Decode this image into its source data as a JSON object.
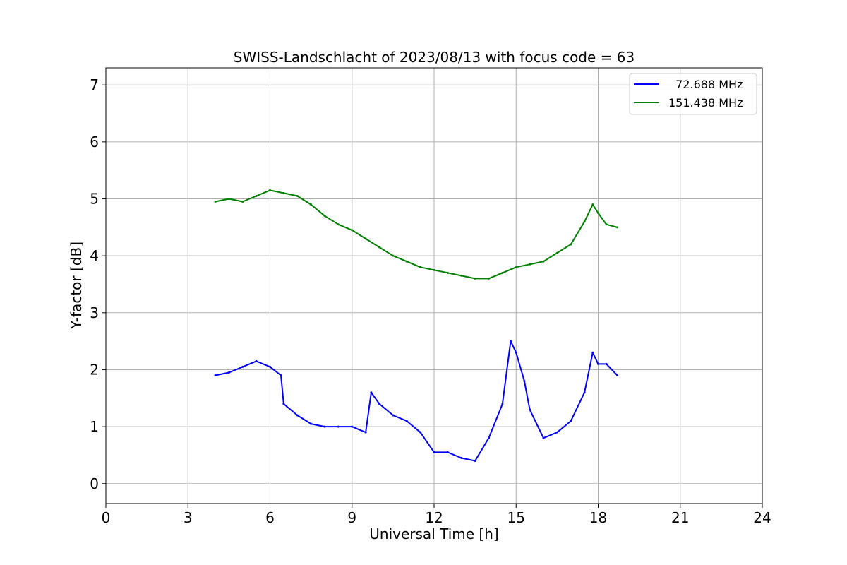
{
  "chart_data": {
    "type": "line",
    "title": "SWISS-Landschlacht of 2023/08/13 with focus code = 63",
    "xlabel": "Universal Time [h]",
    "ylabel": "Y-factor [dB]",
    "xlim": [
      0,
      24
    ],
    "ylim": [
      -0.35,
      7.3
    ],
    "xticks": [
      0,
      3,
      6,
      9,
      12,
      15,
      18,
      21,
      24
    ],
    "yticks": [
      0,
      1,
      2,
      3,
      4,
      5,
      6,
      7
    ],
    "grid": true,
    "legend_position": "top-right",
    "series": [
      {
        "name": "  72.688 MHz",
        "color": "#0000ff",
        "x": [
          4.0,
          4.5,
          5.0,
          5.5,
          6.0,
          6.4,
          6.5,
          7.0,
          7.5,
          8.0,
          8.5,
          9.0,
          9.5,
          9.7,
          10.0,
          10.5,
          11.0,
          11.5,
          12.0,
          12.5,
          13.0,
          13.5,
          14.0,
          14.5,
          14.8,
          15.0,
          15.3,
          15.5,
          16.0,
          16.5,
          17.0,
          17.5,
          17.8,
          18.0,
          18.3,
          18.7
        ],
        "y": [
          1.9,
          1.95,
          2.05,
          2.15,
          2.05,
          1.9,
          1.4,
          1.2,
          1.05,
          1.0,
          1.0,
          1.0,
          0.9,
          1.6,
          1.4,
          1.2,
          1.1,
          0.9,
          0.55,
          0.55,
          0.45,
          0.4,
          0.8,
          1.4,
          2.5,
          2.3,
          1.8,
          1.3,
          0.8,
          0.9,
          1.1,
          1.6,
          2.3,
          2.1,
          2.1,
          1.9
        ]
      },
      {
        "name": "151.438 MHz",
        "color": "#008000",
        "x": [
          4.0,
          4.5,
          5.0,
          5.5,
          6.0,
          6.5,
          7.0,
          7.5,
          8.0,
          8.5,
          9.0,
          9.5,
          10.0,
          10.5,
          11.0,
          11.5,
          12.0,
          12.5,
          13.0,
          13.5,
          14.0,
          14.5,
          15.0,
          15.5,
          16.0,
          16.5,
          17.0,
          17.5,
          17.8,
          18.0,
          18.3,
          18.7
        ],
        "y": [
          4.95,
          5.0,
          4.95,
          5.05,
          5.15,
          5.1,
          5.05,
          4.9,
          4.7,
          4.55,
          4.45,
          4.3,
          4.15,
          4.0,
          3.9,
          3.8,
          3.75,
          3.7,
          3.65,
          3.6,
          3.6,
          3.7,
          3.8,
          3.85,
          3.9,
          4.05,
          4.2,
          4.6,
          4.9,
          4.75,
          4.55,
          4.5
        ]
      }
    ]
  }
}
